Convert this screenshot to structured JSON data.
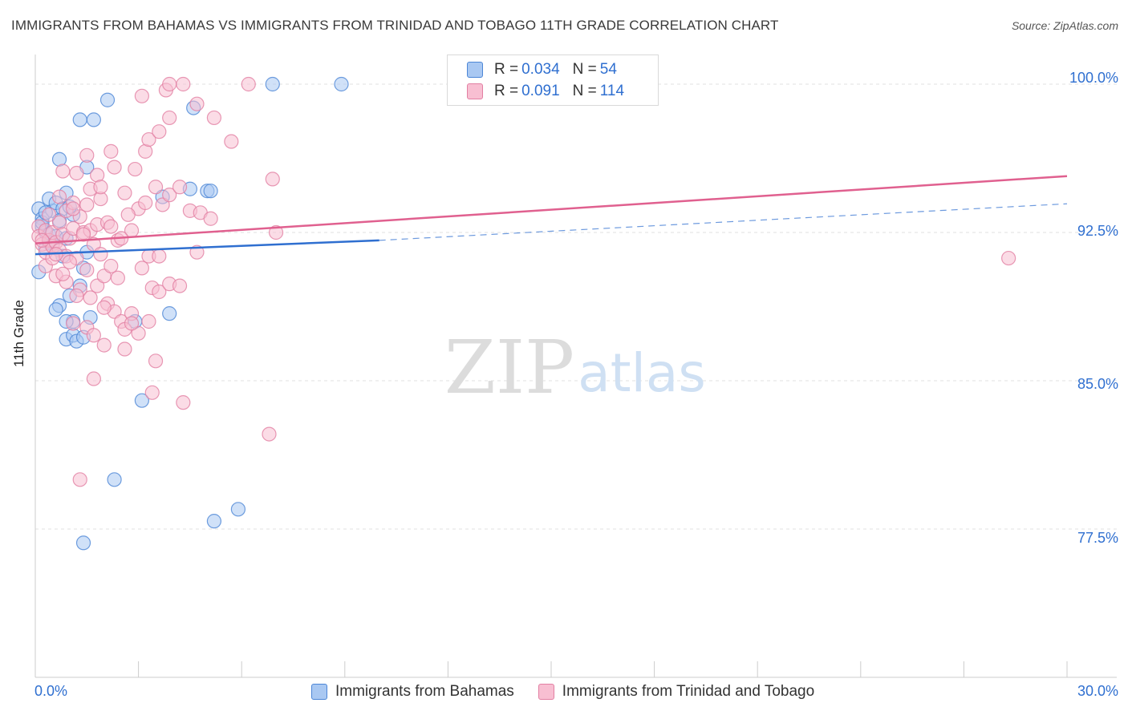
{
  "header": {
    "title": "IMMIGRANTS FROM BAHAMAS VS IMMIGRANTS FROM TRINIDAD AND TOBAGO 11TH GRADE CORRELATION CHART",
    "source": "Source: ZipAtlas.com"
  },
  "watermark": {
    "zip": "ZIP",
    "atlas": "atlas"
  },
  "colors": {
    "blue_fill": "#a9c8f2",
    "blue_stroke": "#4c86d6",
    "blue_line": "#2f6fd0",
    "pink_fill": "#f8bfd2",
    "pink_stroke": "#e27fa2",
    "pink_line": "#e0608f",
    "tick_label": "#2f6fd0",
    "grid": "#e2e2e2"
  },
  "legend": {
    "rows": [
      {
        "r_label": "R =",
        "r_value": "0.034",
        "n_label": "N =",
        "n_value": "54"
      },
      {
        "r_label": "R =",
        "r_value": "0.091",
        "n_label": "N =",
        "n_value": "114"
      }
    ]
  },
  "chart_data": {
    "type": "scatter",
    "title": "IMMIGRANTS FROM BAHAMAS VS IMMIGRANTS FROM TRINIDAD AND TOBAGO 11TH GRADE CORRELATION CHART",
    "xlabel": "",
    "ylabel": "11th Grade",
    "xlim": [
      0,
      30
    ],
    "ylim": [
      70.0,
      101.5
    ],
    "x_tick_labels": [
      "0.0%",
      "30.0%"
    ],
    "y_ticks": [
      77.5,
      85.0,
      92.5,
      100.0
    ],
    "y_tick_labels": [
      "77.5%",
      "85.0%",
      "92.5%",
      "100.0%"
    ],
    "grid": true,
    "series": [
      {
        "name": "Immigrants from Bahamas",
        "color": "#a9c8f2",
        "trend": {
          "x0": 0,
          "y0": 91.4,
          "x1": 10.0,
          "y1": 92.1,
          "dashed_to_x": 30,
          "dashed_to_y": 93.95
        },
        "points": [
          [
            0.1,
            93.7
          ],
          [
            0.2,
            93.2
          ],
          [
            0.2,
            92.8
          ],
          [
            0.3,
            92.5
          ],
          [
            0.4,
            92.4
          ],
          [
            0.5,
            93.6
          ],
          [
            0.4,
            94.2
          ],
          [
            0.6,
            94.0
          ],
          [
            0.8,
            93.7
          ],
          [
            0.9,
            94.5
          ],
          [
            0.7,
            93.1
          ],
          [
            0.5,
            91.9
          ],
          [
            0.8,
            91.3
          ],
          [
            1.1,
            93.4
          ],
          [
            0.7,
            96.2
          ],
          [
            1.3,
            98.2
          ],
          [
            1.7,
            98.2
          ],
          [
            2.1,
            99.2
          ],
          [
            1.5,
            95.8
          ],
          [
            0.1,
            90.5
          ],
          [
            1.0,
            89.3
          ],
          [
            0.7,
            88.8
          ],
          [
            0.6,
            88.6
          ],
          [
            1.1,
            88.0
          ],
          [
            1.6,
            88.2
          ],
          [
            2.9,
            88.0
          ],
          [
            0.9,
            87.1
          ],
          [
            1.1,
            87.3
          ],
          [
            1.2,
            87.0
          ],
          [
            1.4,
            87.2
          ],
          [
            3.1,
            84.0
          ],
          [
            3.9,
            88.4
          ],
          [
            3.7,
            94.3
          ],
          [
            4.5,
            94.7
          ],
          [
            5.0,
            94.6
          ],
          [
            5.1,
            94.6
          ],
          [
            4.6,
            98.8
          ],
          [
            6.9,
            100.0
          ],
          [
            8.9,
            100.0
          ],
          [
            1.5,
            91.5
          ],
          [
            1.4,
            90.7
          ],
          [
            2.3,
            80.0
          ],
          [
            1.4,
            76.8
          ],
          [
            5.2,
            77.9
          ],
          [
            5.9,
            78.5
          ],
          [
            0.3,
            91.7
          ],
          [
            0.2,
            93.0
          ],
          [
            0.6,
            92.3
          ],
          [
            0.9,
            92.2
          ],
          [
            0.4,
            92.0
          ],
          [
            1.0,
            93.8
          ],
          [
            0.3,
            93.5
          ],
          [
            1.3,
            89.8
          ],
          [
            0.9,
            88.0
          ]
        ]
      },
      {
        "name": "Immigrants from Trinidad and Tobago",
        "color": "#f8bfd2",
        "trend": {
          "x0": 0,
          "y0": 91.95,
          "x1": 30,
          "y1": 95.35
        },
        "points": [
          [
            0.1,
            92.8
          ],
          [
            0.1,
            92.3
          ],
          [
            0.2,
            91.9
          ],
          [
            0.3,
            92.6
          ],
          [
            0.3,
            91.5
          ],
          [
            0.4,
            92.1
          ],
          [
            0.5,
            92.5
          ],
          [
            0.5,
            91.8
          ],
          [
            0.6,
            92.0
          ],
          [
            0.7,
            91.6
          ],
          [
            0.7,
            93.0
          ],
          [
            0.8,
            92.4
          ],
          [
            0.9,
            91.3
          ],
          [
            0.9,
            93.6
          ],
          [
            1.0,
            92.2
          ],
          [
            1.1,
            94.0
          ],
          [
            1.1,
            92.7
          ],
          [
            1.2,
            91.2
          ],
          [
            1.3,
            93.3
          ],
          [
            1.4,
            92.5
          ],
          [
            1.5,
            93.9
          ],
          [
            1.6,
            92.6
          ],
          [
            1.7,
            91.9
          ],
          [
            1.8,
            92.9
          ],
          [
            1.9,
            94.2
          ],
          [
            2.1,
            93.0
          ],
          [
            2.2,
            92.8
          ],
          [
            2.4,
            92.1
          ],
          [
            2.6,
            94.5
          ],
          [
            2.8,
            92.6
          ],
          [
            3.0,
            93.7
          ],
          [
            3.2,
            94.0
          ],
          [
            3.5,
            94.8
          ],
          [
            3.7,
            93.9
          ],
          [
            3.9,
            94.4
          ],
          [
            4.2,
            94.8
          ],
          [
            4.5,
            93.6
          ],
          [
            4.8,
            93.5
          ],
          [
            5.1,
            93.2
          ],
          [
            0.8,
            95.6
          ],
          [
            1.2,
            95.5
          ],
          [
            1.5,
            96.4
          ],
          [
            1.8,
            95.4
          ],
          [
            2.2,
            96.6
          ],
          [
            2.3,
            95.8
          ],
          [
            2.9,
            95.7
          ],
          [
            3.2,
            96.6
          ],
          [
            3.3,
            97.2
          ],
          [
            3.6,
            97.6
          ],
          [
            3.9,
            98.3
          ],
          [
            4.7,
            99.0
          ],
          [
            5.2,
            98.3
          ],
          [
            5.7,
            97.1
          ],
          [
            3.1,
            99.4
          ],
          [
            3.8,
            99.7
          ],
          [
            3.9,
            100.0
          ],
          [
            4.3,
            100.0
          ],
          [
            6.2,
            100.0
          ],
          [
            6.9,
            95.2
          ],
          [
            7.0,
            92.5
          ],
          [
            0.3,
            90.8
          ],
          [
            0.6,
            90.3
          ],
          [
            0.9,
            90.0
          ],
          [
            1.3,
            89.6
          ],
          [
            1.5,
            90.6
          ],
          [
            1.6,
            89.2
          ],
          [
            1.8,
            89.8
          ],
          [
            2.0,
            90.3
          ],
          [
            2.1,
            88.9
          ],
          [
            2.3,
            88.5
          ],
          [
            2.5,
            88.0
          ],
          [
            2.6,
            87.6
          ],
          [
            2.8,
            88.4
          ],
          [
            3.0,
            87.4
          ],
          [
            3.3,
            88.0
          ],
          [
            3.4,
            89.7
          ],
          [
            3.6,
            89.5
          ],
          [
            3.9,
            89.9
          ],
          [
            4.2,
            89.8
          ],
          [
            1.1,
            87.9
          ],
          [
            1.5,
            87.7
          ],
          [
            1.7,
            87.3
          ],
          [
            2.0,
            86.8
          ],
          [
            2.6,
            86.6
          ],
          [
            3.5,
            86.0
          ],
          [
            1.7,
            85.1
          ],
          [
            3.4,
            84.4
          ],
          [
            4.3,
            83.9
          ],
          [
            6.8,
            82.3
          ],
          [
            1.3,
            80.0
          ],
          [
            0.5,
            91.2
          ],
          [
            1.0,
            91.0
          ],
          [
            1.9,
            91.4
          ],
          [
            2.4,
            90.2
          ],
          [
            3.1,
            90.7
          ],
          [
            3.3,
            91.3
          ],
          [
            3.6,
            91.3
          ],
          [
            4.7,
            91.5
          ],
          [
            1.2,
            89.3
          ],
          [
            2.0,
            88.7
          ],
          [
            2.8,
            87.9
          ],
          [
            28.3,
            91.2
          ],
          [
            0.4,
            93.4
          ],
          [
            0.7,
            94.3
          ],
          [
            1.1,
            93.7
          ],
          [
            1.6,
            94.7
          ],
          [
            2.5,
            92.2
          ],
          [
            2.7,
            93.4
          ],
          [
            0.2,
            92.1
          ],
          [
            0.6,
            91.4
          ],
          [
            1.4,
            92.4
          ],
          [
            1.9,
            94.8
          ],
          [
            0.8,
            90.4
          ],
          [
            2.2,
            90.8
          ]
        ]
      }
    ]
  },
  "bottom_legend": [
    {
      "label": "Immigrants from Bahamas"
    },
    {
      "label": "Immigrants from Trinidad and Tobago"
    }
  ]
}
